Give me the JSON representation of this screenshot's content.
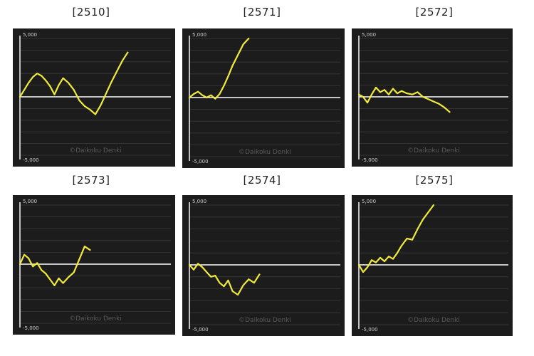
{
  "watermark": "©Daikoku Denki",
  "colors": {
    "background": "#1c1c1c",
    "line": "#f2ea3a",
    "zero": "#ffffff",
    "grid": "#3a3a3a"
  },
  "chart_data": [
    {
      "type": "line",
      "title": "[2510]",
      "ylim": [
        -5000,
        5000
      ],
      "yticks": [
        5000,
        -5000
      ],
      "ytick_labels": [
        "5,000",
        "-5,000"
      ],
      "x": [
        0,
        4,
        8,
        12,
        16,
        20,
        24,
        28,
        32,
        36,
        40,
        45,
        50,
        55,
        60,
        65,
        70,
        75,
        80,
        85,
        90,
        95,
        100,
        105,
        110,
        115,
        120,
        125,
        130,
        135,
        140
      ],
      "values": [
        0,
        600,
        1200,
        1700,
        2000,
        1800,
        1400,
        900,
        200,
        1000,
        1600,
        1200,
        600,
        -300,
        -800,
        -1100,
        -1500,
        -700,
        300,
        1300,
        2200,
        3100,
        3800,
        null,
        null,
        null,
        null,
        null,
        null,
        null,
        null
      ]
    },
    {
      "type": "line",
      "title": "[2571]",
      "ylim": [
        -5000,
        5000
      ],
      "yticks": [
        5000,
        -5000
      ],
      "ytick_labels": [
        "5,000",
        "-5,000"
      ],
      "x": [
        0,
        4,
        8,
        12,
        16,
        20,
        24,
        28,
        32,
        36,
        40,
        45,
        50,
        55,
        60,
        65,
        70,
        75,
        80,
        85,
        90,
        95,
        100,
        105,
        110,
        115,
        120,
        125,
        130,
        135,
        140
      ],
      "values": [
        0,
        300,
        500,
        200,
        0,
        200,
        -100,
        300,
        1000,
        1800,
        2700,
        3600,
        4500,
        5000,
        null,
        null,
        null,
        null,
        null,
        null,
        null,
        null,
        null,
        null,
        null,
        null,
        null,
        null,
        null,
        null,
        null
      ]
    },
    {
      "type": "line",
      "title": "[2572]",
      "ylim": [
        -5000,
        5000
      ],
      "yticks": [
        5000,
        -5000
      ],
      "ytick_labels": [
        "5,000",
        "-5,000"
      ],
      "x": [
        0,
        4,
        8,
        12,
        16,
        20,
        24,
        28,
        32,
        36,
        40,
        45,
        50,
        55,
        60,
        65,
        70,
        75,
        80,
        85,
        90,
        95,
        100,
        105,
        110,
        115,
        120,
        125,
        130,
        135,
        140
      ],
      "values": [
        200,
        0,
        -500,
        200,
        800,
        400,
        600,
        200,
        700,
        300,
        500,
        300,
        200,
        400,
        0,
        -200,
        -400,
        -600,
        -900,
        -1300,
        null,
        null,
        null,
        null,
        null,
        null,
        null,
        null,
        null,
        null,
        null
      ]
    },
    {
      "type": "line",
      "title": "[2573]",
      "ylim": [
        -5000,
        5000
      ],
      "yticks": [
        5000,
        -5000
      ],
      "ytick_labels": [
        "5,000",
        "-5,000"
      ],
      "x": [
        0,
        4,
        8,
        12,
        16,
        20,
        24,
        28,
        32,
        36,
        40,
        45,
        50,
        55,
        60,
        65,
        70,
        75,
        80,
        85,
        90,
        95,
        100,
        105,
        110,
        115,
        120,
        125,
        130,
        135,
        140
      ],
      "values": [
        0,
        800,
        500,
        -200,
        100,
        -500,
        -800,
        -1300,
        -1800,
        -1200,
        -1600,
        -1100,
        -700,
        400,
        1500,
        1200,
        null,
        null,
        null,
        null,
        null,
        null,
        null,
        null,
        null,
        null,
        null,
        null,
        null,
        null,
        null
      ]
    },
    {
      "type": "line",
      "title": "[2574]",
      "ylim": [
        -5000,
        5000
      ],
      "yticks": [
        5000,
        -5000
      ],
      "ytick_labels": [
        "5,000",
        "-5,000"
      ],
      "x": [
        0,
        4,
        8,
        12,
        16,
        20,
        24,
        28,
        32,
        36,
        40,
        45,
        50,
        55,
        60,
        65,
        70,
        75,
        80,
        85,
        90,
        95,
        100,
        105,
        110,
        115,
        120,
        125,
        130,
        135,
        140
      ],
      "values": [
        0,
        -400,
        100,
        -200,
        -600,
        -1000,
        -900,
        -1500,
        -1800,
        -1300,
        -2200,
        -2500,
        -1700,
        -1200,
        -1500,
        -800,
        null,
        null,
        null,
        null,
        null,
        null,
        null,
        null,
        null,
        null,
        null,
        null,
        null,
        null,
        null
      ]
    },
    {
      "type": "line",
      "title": "[2575]",
      "ylim": [
        -5000,
        5000
      ],
      "yticks": [
        5000,
        -5000
      ],
      "ytick_labels": [
        "5,000",
        "-5,000"
      ],
      "x": [
        0,
        4,
        8,
        12,
        16,
        20,
        24,
        28,
        32,
        36,
        40,
        45,
        50,
        55,
        60,
        65,
        70,
        75,
        80,
        85,
        90,
        95,
        100,
        105,
        110,
        115,
        120,
        125,
        130,
        135,
        140
      ],
      "values": [
        0,
        -600,
        -200,
        400,
        200,
        600,
        300,
        700,
        500,
        1000,
        1600,
        2200,
        2100,
        3000,
        3800,
        4400,
        5000,
        null,
        null,
        null,
        null,
        null,
        null,
        null,
        null,
        null,
        null,
        null,
        null,
        null,
        null
      ]
    }
  ]
}
